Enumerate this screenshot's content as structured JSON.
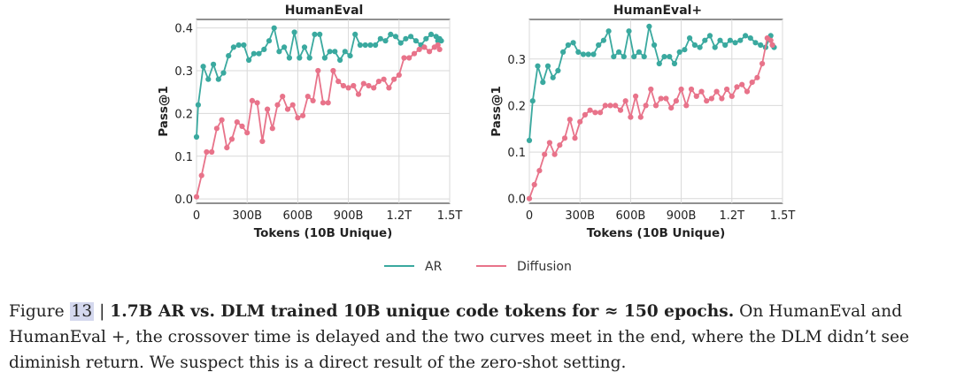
{
  "chart_data": [
    {
      "type": "line",
      "title": "HumanEval",
      "xlabel": "Tokens (10B Unique)",
      "ylabel": "Pass@1",
      "xlim": [
        0,
        1.5
      ],
      "ylim": [
        -0.01,
        0.42
      ],
      "xticks": [
        {
          "value": 0,
          "label": "0"
        },
        {
          "value": 0.3,
          "label": "300B"
        },
        {
          "value": 0.6,
          "label": "600B"
        },
        {
          "value": 0.9,
          "label": "900B"
        },
        {
          "value": 1.2,
          "label": "1.2T"
        },
        {
          "value": 1.5,
          "label": "1.5T"
        }
      ],
      "yticks": [
        {
          "value": 0.0,
          "label": "0.0"
        },
        {
          "value": 0.1,
          "label": "0.1"
        },
        {
          "value": 0.2,
          "label": "0.2"
        },
        {
          "value": 0.3,
          "label": "0.3"
        },
        {
          "value": 0.4,
          "label": "0.4"
        }
      ],
      "grid": true,
      "series": [
        {
          "name": "AR",
          "color": "#3aa99f",
          "x": [
            0.0,
            0.01,
            0.04,
            0.07,
            0.1,
            0.13,
            0.16,
            0.19,
            0.22,
            0.25,
            0.28,
            0.31,
            0.34,
            0.37,
            0.4,
            0.43,
            0.46,
            0.49,
            0.52,
            0.55,
            0.58,
            0.61,
            0.64,
            0.67,
            0.7,
            0.73,
            0.76,
            0.79,
            0.82,
            0.85,
            0.88,
            0.91,
            0.94,
            0.97,
            1.0,
            1.03,
            1.06,
            1.09,
            1.12,
            1.15,
            1.18,
            1.21,
            1.24,
            1.27,
            1.3,
            1.33,
            1.36,
            1.39,
            1.42,
            1.43,
            1.44,
            1.45
          ],
          "y": [
            0.145,
            0.22,
            0.31,
            0.28,
            0.315,
            0.28,
            0.295,
            0.335,
            0.355,
            0.36,
            0.36,
            0.325,
            0.34,
            0.34,
            0.35,
            0.37,
            0.4,
            0.345,
            0.355,
            0.33,
            0.39,
            0.33,
            0.355,
            0.33,
            0.385,
            0.385,
            0.33,
            0.345,
            0.345,
            0.325,
            0.345,
            0.335,
            0.385,
            0.36,
            0.36,
            0.36,
            0.36,
            0.375,
            0.37,
            0.385,
            0.38,
            0.365,
            0.375,
            0.38,
            0.37,
            0.36,
            0.375,
            0.385,
            0.38,
            0.37,
            0.375,
            0.37
          ]
        },
        {
          "name": "Diffusion",
          "color": "#e8738a",
          "x": [
            0.0,
            0.03,
            0.06,
            0.09,
            0.12,
            0.15,
            0.18,
            0.21,
            0.24,
            0.27,
            0.3,
            0.33,
            0.36,
            0.39,
            0.42,
            0.45,
            0.48,
            0.51,
            0.54,
            0.57,
            0.6,
            0.63,
            0.66,
            0.69,
            0.72,
            0.75,
            0.78,
            0.81,
            0.84,
            0.87,
            0.9,
            0.93,
            0.96,
            0.99,
            1.02,
            1.05,
            1.08,
            1.11,
            1.14,
            1.17,
            1.2,
            1.23,
            1.26,
            1.29,
            1.32,
            1.35,
            1.38,
            1.41,
            1.43,
            1.44
          ],
          "y": [
            0.005,
            0.055,
            0.11,
            0.11,
            0.165,
            0.185,
            0.12,
            0.14,
            0.18,
            0.17,
            0.155,
            0.23,
            0.225,
            0.135,
            0.21,
            0.165,
            0.22,
            0.24,
            0.21,
            0.22,
            0.19,
            0.195,
            0.24,
            0.23,
            0.3,
            0.225,
            0.225,
            0.3,
            0.275,
            0.265,
            0.26,
            0.265,
            0.245,
            0.27,
            0.265,
            0.26,
            0.275,
            0.28,
            0.26,
            0.28,
            0.29,
            0.33,
            0.33,
            0.34,
            0.35,
            0.355,
            0.345,
            0.355,
            0.36,
            0.35
          ]
        }
      ]
    },
    {
      "type": "line",
      "title": "HumanEval+",
      "xlabel": "Tokens (10B Unique)",
      "ylabel": "Pass@1",
      "xlim": [
        0,
        1.5
      ],
      "ylim": [
        -0.01,
        0.385
      ],
      "xticks": [
        {
          "value": 0,
          "label": "0"
        },
        {
          "value": 0.3,
          "label": "300B"
        },
        {
          "value": 0.6,
          "label": "600B"
        },
        {
          "value": 0.9,
          "label": "900B"
        },
        {
          "value": 1.2,
          "label": "1.2T"
        },
        {
          "value": 1.5,
          "label": "1.5T"
        }
      ],
      "yticks": [
        {
          "value": 0.0,
          "label": "0.0"
        },
        {
          "value": 0.1,
          "label": "0.1"
        },
        {
          "value": 0.2,
          "label": "0.2"
        },
        {
          "value": 0.3,
          "label": "0.3"
        }
      ],
      "grid": true,
      "series": [
        {
          "name": "AR",
          "color": "#3aa99f",
          "x": [
            0.0,
            0.02,
            0.05,
            0.08,
            0.11,
            0.14,
            0.17,
            0.2,
            0.23,
            0.26,
            0.29,
            0.32,
            0.35,
            0.38,
            0.41,
            0.44,
            0.47,
            0.5,
            0.53,
            0.56,
            0.59,
            0.62,
            0.65,
            0.68,
            0.71,
            0.74,
            0.77,
            0.8,
            0.83,
            0.86,
            0.89,
            0.92,
            0.95,
            0.98,
            1.01,
            1.04,
            1.07,
            1.1,
            1.13,
            1.16,
            1.19,
            1.22,
            1.25,
            1.28,
            1.31,
            1.34,
            1.37,
            1.4,
            1.43,
            1.44,
            1.45
          ],
          "y": [
            0.125,
            0.21,
            0.285,
            0.25,
            0.285,
            0.26,
            0.275,
            0.315,
            0.33,
            0.335,
            0.315,
            0.31,
            0.31,
            0.31,
            0.33,
            0.34,
            0.36,
            0.305,
            0.315,
            0.305,
            0.36,
            0.305,
            0.315,
            0.305,
            0.37,
            0.33,
            0.29,
            0.305,
            0.305,
            0.29,
            0.315,
            0.32,
            0.345,
            0.33,
            0.325,
            0.34,
            0.35,
            0.325,
            0.34,
            0.33,
            0.34,
            0.335,
            0.34,
            0.35,
            0.345,
            0.335,
            0.33,
            0.325,
            0.35,
            0.33,
            0.325
          ]
        },
        {
          "name": "Diffusion",
          "color": "#e8738a",
          "x": [
            0.0,
            0.03,
            0.06,
            0.09,
            0.12,
            0.15,
            0.18,
            0.21,
            0.24,
            0.27,
            0.3,
            0.33,
            0.36,
            0.39,
            0.42,
            0.45,
            0.48,
            0.51,
            0.54,
            0.57,
            0.6,
            0.63,
            0.66,
            0.69,
            0.72,
            0.75,
            0.78,
            0.81,
            0.84,
            0.87,
            0.9,
            0.93,
            0.96,
            0.99,
            1.02,
            1.05,
            1.08,
            1.11,
            1.14,
            1.17,
            1.2,
            1.23,
            1.26,
            1.29,
            1.32,
            1.35,
            1.38,
            1.41,
            1.43,
            1.44
          ],
          "y": [
            0.0,
            0.03,
            0.06,
            0.095,
            0.12,
            0.095,
            0.115,
            0.13,
            0.17,
            0.13,
            0.165,
            0.18,
            0.19,
            0.185,
            0.185,
            0.2,
            0.2,
            0.2,
            0.19,
            0.21,
            0.175,
            0.22,
            0.175,
            0.2,
            0.235,
            0.2,
            0.215,
            0.215,
            0.195,
            0.21,
            0.235,
            0.2,
            0.235,
            0.22,
            0.23,
            0.21,
            0.215,
            0.23,
            0.215,
            0.235,
            0.22,
            0.24,
            0.245,
            0.23,
            0.25,
            0.26,
            0.29,
            0.345,
            0.34,
            0.33
          ]
        }
      ]
    }
  ],
  "legend": {
    "items": [
      {
        "label": "AR",
        "color": "#3aa99f"
      },
      {
        "label": "Diffusion",
        "color": "#e8738a"
      }
    ]
  },
  "caption": {
    "prefix": "Figure ",
    "figure_number": "13",
    "separator": " | ",
    "bold_text": "1.7B AR vs. DLM trained 10B unique code tokens for ≈ 150 epochs.",
    "body_text": " On HumanEval and HumanEval +, the crossover time is delayed and the two curves meet in the end, where the DLM didn’t see diminish return. We suspect this is a direct result of the zero-shot setting."
  }
}
